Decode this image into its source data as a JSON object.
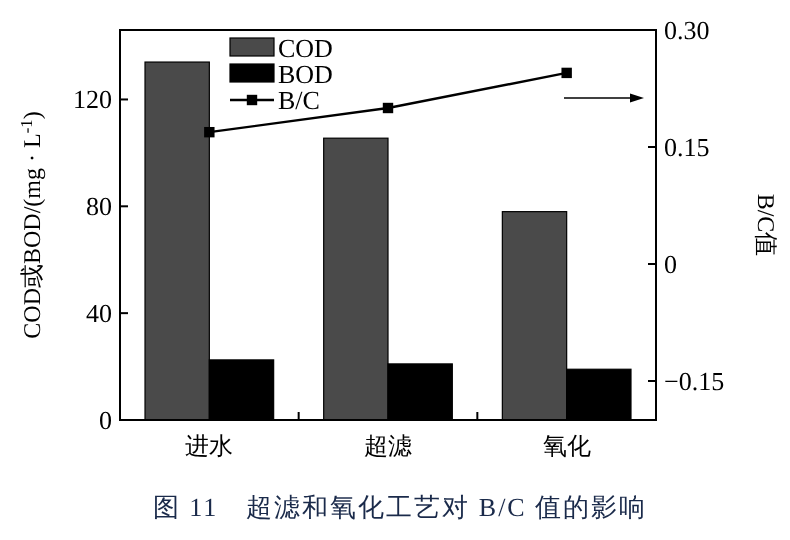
{
  "chart_data": {
    "type": "bar",
    "title": "图 11　超滤和氧化工艺对 B/C 值的影响",
    "categories": [
      "进水",
      "超滤",
      "氧化"
    ],
    "series": [
      {
        "name": "COD",
        "color": "#4a4a4a",
        "values": [
          134,
          105.5,
          78
        ]
      },
      {
        "name": "BOD",
        "color": "#000000",
        "values": [
          22.5,
          21,
          19
        ]
      },
      {
        "name": "B/C",
        "type": "line",
        "axis": "y2",
        "color": "#000000",
        "marker": "square",
        "values": [
          0.169,
          0.2,
          0.245
        ]
      }
    ],
    "ylabel": "COD或BOD/(mg · L$^{-1}$)",
    "y2label": "B/C值",
    "ylim": [
      0,
      146
    ],
    "yticks": [
      0,
      40,
      80,
      120
    ],
    "y2lim": [
      -0.2,
      0.3
    ],
    "y2ticks": [
      -0.15,
      0,
      0.15,
      {
        "value": 0.3,
        "label": "0.30"
      }
    ],
    "legend": "top left",
    "grid": false
  }
}
